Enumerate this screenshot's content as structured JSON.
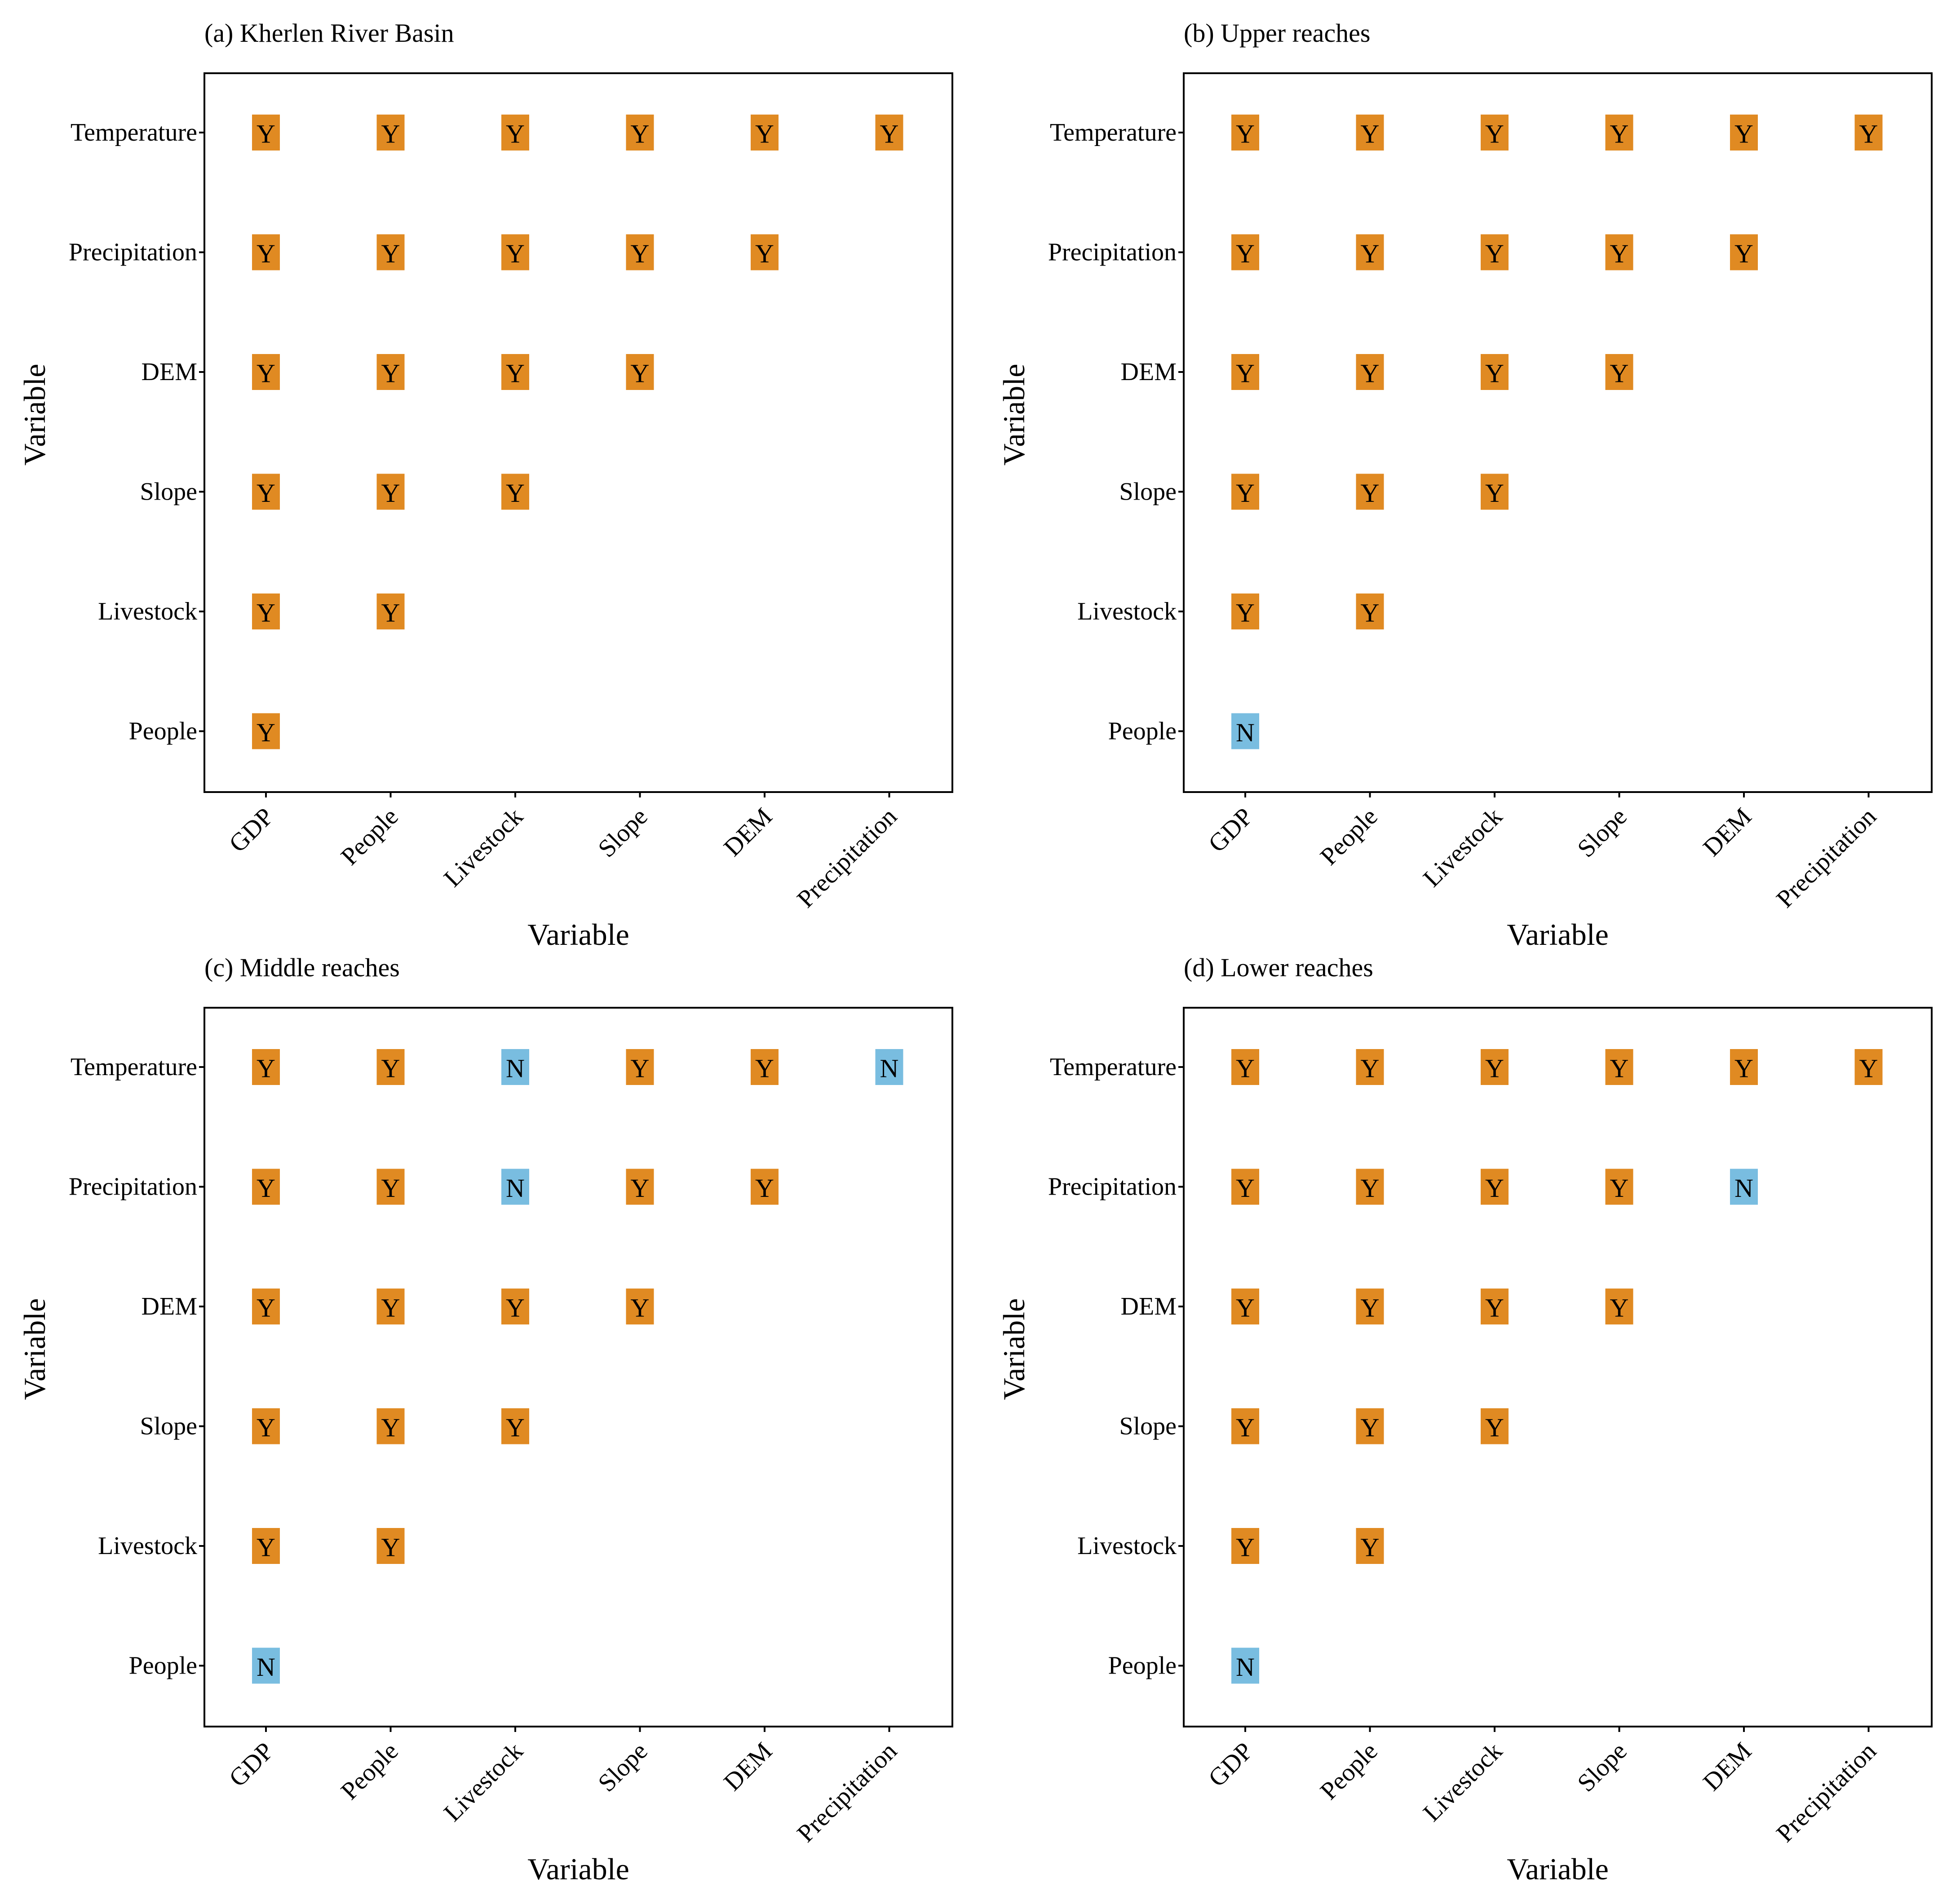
{
  "colors": {
    "Y": "#E08A22",
    "N": "#79BDE0",
    "frame": "#000000"
  },
  "chart_data": [
    {
      "type": "table",
      "title": "(a) Kherlen River Basin",
      "xlabel": "Variable",
      "ylabel": "Variable",
      "x_categories": [
        "GDP",
        "People",
        "Livestock",
        "Slope",
        "DEM",
        "Precipitation"
      ],
      "y_categories": [
        "Temperature",
        "Precipitation",
        "DEM",
        "Slope",
        "Livestock",
        "People"
      ],
      "matrix": [
        [
          "Y",
          "Y",
          "Y",
          "Y",
          "Y",
          "Y"
        ],
        [
          "Y",
          "Y",
          "Y",
          "Y",
          "Y",
          null
        ],
        [
          "Y",
          "Y",
          "Y",
          "Y",
          null,
          null
        ],
        [
          "Y",
          "Y",
          "Y",
          null,
          null,
          null
        ],
        [
          "Y",
          "Y",
          null,
          null,
          null,
          null
        ],
        [
          "Y",
          null,
          null,
          null,
          null,
          null
        ]
      ]
    },
    {
      "type": "table",
      "title": "(b) Upper reaches",
      "xlabel": "Variable",
      "ylabel": "Variable",
      "x_categories": [
        "GDP",
        "People",
        "Livestock",
        "Slope",
        "DEM",
        "Precipitation"
      ],
      "y_categories": [
        "Temperature",
        "Precipitation",
        "DEM",
        "Slope",
        "Livestock",
        "People"
      ],
      "matrix": [
        [
          "Y",
          "Y",
          "Y",
          "Y",
          "Y",
          "Y"
        ],
        [
          "Y",
          "Y",
          "Y",
          "Y",
          "Y",
          null
        ],
        [
          "Y",
          "Y",
          "Y",
          "Y",
          null,
          null
        ],
        [
          "Y",
          "Y",
          "Y",
          null,
          null,
          null
        ],
        [
          "Y",
          "Y",
          null,
          null,
          null,
          null
        ],
        [
          "N",
          null,
          null,
          null,
          null,
          null
        ]
      ]
    },
    {
      "type": "table",
      "title": "(c) Middle reaches",
      "xlabel": "Variable",
      "ylabel": "Variable",
      "x_categories": [
        "GDP",
        "People",
        "Livestock",
        "Slope",
        "DEM",
        "Precipitation"
      ],
      "y_categories": [
        "Temperature",
        "Precipitation",
        "DEM",
        "Slope",
        "Livestock",
        "People"
      ],
      "matrix": [
        [
          "Y",
          "Y",
          "N",
          "Y",
          "Y",
          "N"
        ],
        [
          "Y",
          "Y",
          "N",
          "Y",
          "Y",
          null
        ],
        [
          "Y",
          "Y",
          "Y",
          "Y",
          null,
          null
        ],
        [
          "Y",
          "Y",
          "Y",
          null,
          null,
          null
        ],
        [
          "Y",
          "Y",
          null,
          null,
          null,
          null
        ],
        [
          "N",
          null,
          null,
          null,
          null,
          null
        ]
      ]
    },
    {
      "type": "table",
      "title": "(d) Lower reaches",
      "xlabel": "Variable",
      "ylabel": "Variable",
      "x_categories": [
        "GDP",
        "People",
        "Livestock",
        "Slope",
        "DEM",
        "Precipitation"
      ],
      "y_categories": [
        "Temperature",
        "Precipitation",
        "DEM",
        "Slope",
        "Livestock",
        "People"
      ],
      "matrix": [
        [
          "Y",
          "Y",
          "Y",
          "Y",
          "Y",
          "Y"
        ],
        [
          "Y",
          "Y",
          "Y",
          "Y",
          "N",
          null
        ],
        [
          "Y",
          "Y",
          "Y",
          "Y",
          null,
          null
        ],
        [
          "Y",
          "Y",
          "Y",
          null,
          null,
          null
        ],
        [
          "Y",
          "Y",
          null,
          null,
          null,
          null
        ],
        [
          "N",
          null,
          null,
          null,
          null,
          null
        ]
      ]
    }
  ]
}
